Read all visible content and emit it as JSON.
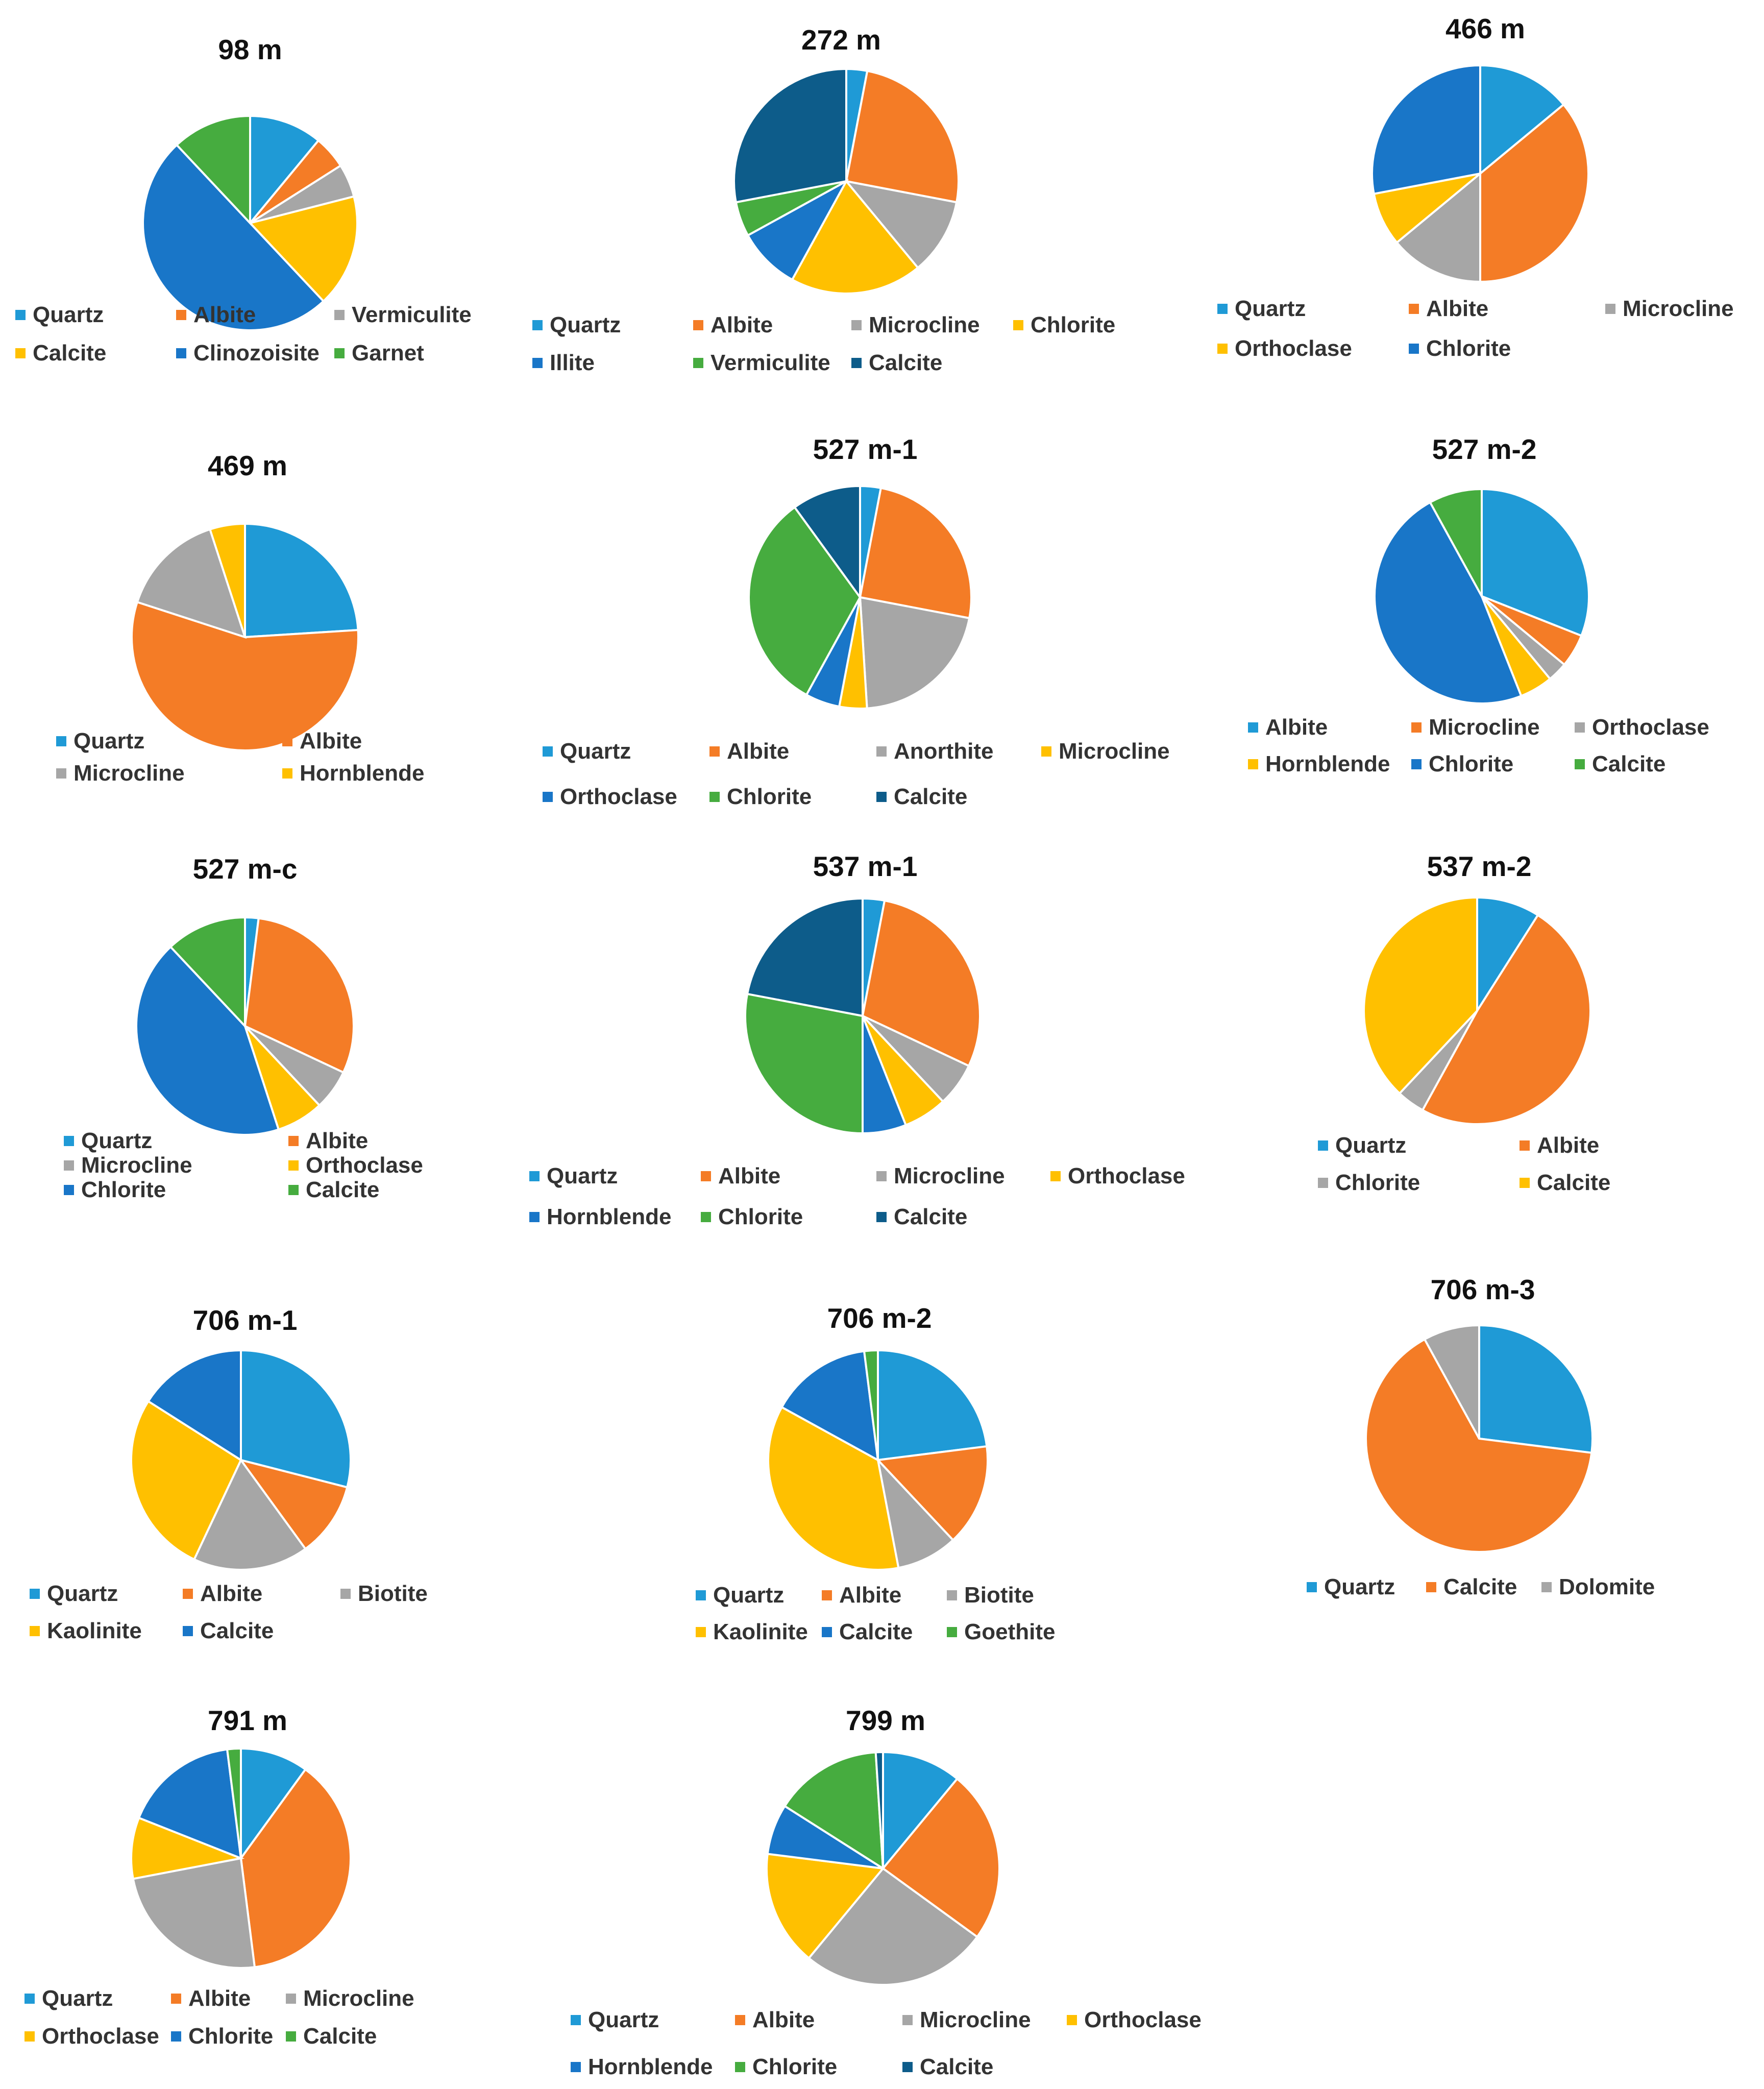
{
  "colors": {
    "Quartz": "#1f9ad6",
    "Albite": "#f47c26",
    "Vermiculite": "#a6a6a6",
    "Calcite": "#ffc000",
    "Clinozoisite": "#1976c8",
    "Garnet": "#46ac3f",
    "Microcline": "#a6a6a6",
    "Chlorite": "#ffc000",
    "Illite": "#1976c8",
    "Anorthite": "#a6a6a6",
    "Orthoclase": "#ffc000",
    "Hornblende": "#ffc000",
    "Biotite": "#a6a6a6",
    "Kaolinite": "#ffc000",
    "Goethite": "#46ac3f",
    "Dolomite": "#a6a6a6"
  },
  "chart_data": [
    {
      "type": "pie",
      "title": "98 m",
      "series": [
        {
          "name": "Quartz",
          "value": 11,
          "color": "#1f9ad6"
        },
        {
          "name": "Albite",
          "value": 5,
          "color": "#f47c26"
        },
        {
          "name": "Vermiculite",
          "value": 5,
          "color": "#a6a6a6"
        },
        {
          "name": "Calcite",
          "value": 17,
          "color": "#ffc000"
        },
        {
          "name": "Clinozoisite",
          "value": 50,
          "color": "#1976c8"
        },
        {
          "name": "Garnet",
          "value": 12,
          "color": "#46ac3f"
        }
      ],
      "legend": "bottom"
    },
    {
      "type": "pie",
      "title": "272 m",
      "series": [
        {
          "name": "Quartz",
          "value": 3,
          "color": "#1f9ad6"
        },
        {
          "name": "Albite",
          "value": 25,
          "color": "#f47c26"
        },
        {
          "name": "Microcline",
          "value": 11,
          "color": "#a6a6a6"
        },
        {
          "name": "Chlorite",
          "value": 19,
          "color": "#ffc000"
        },
        {
          "name": "Illite",
          "value": 9,
          "color": "#1976c8"
        },
        {
          "name": "Vermiculite",
          "value": 5,
          "color": "#46ac3f"
        },
        {
          "name": "Calcite",
          "value": 28,
          "color": "#0d5c8a"
        }
      ],
      "legend": "bottom"
    },
    {
      "type": "pie",
      "title": "466 m",
      "series": [
        {
          "name": "Quartz",
          "value": 14,
          "color": "#1f9ad6"
        },
        {
          "name": "Albite",
          "value": 36,
          "color": "#f47c26"
        },
        {
          "name": "Microcline",
          "value": 14,
          "color": "#a6a6a6"
        },
        {
          "name": "Orthoclase",
          "value": 8,
          "color": "#ffc000"
        },
        {
          "name": "Chlorite",
          "value": 28,
          "color": "#1976c8"
        }
      ],
      "legend": "bottom"
    },
    {
      "type": "pie",
      "title": "469 m",
      "series": [
        {
          "name": "Quartz",
          "value": 24,
          "color": "#1f9ad6"
        },
        {
          "name": "Albite",
          "value": 56,
          "color": "#f47c26"
        },
        {
          "name": "Microcline",
          "value": 15,
          "color": "#a6a6a6"
        },
        {
          "name": "Hornblende",
          "value": 5,
          "color": "#ffc000"
        }
      ],
      "legend": "bottom"
    },
    {
      "type": "pie",
      "title": "527 m-1",
      "series": [
        {
          "name": "Quartz",
          "value": 3,
          "color": "#1f9ad6"
        },
        {
          "name": "Albite",
          "value": 25,
          "color": "#f47c26"
        },
        {
          "name": "Anorthite",
          "value": 21,
          "color": "#a6a6a6"
        },
        {
          "name": "Microcline",
          "value": 4,
          "color": "#ffc000"
        },
        {
          "name": "Orthoclase",
          "value": 5,
          "color": "#1976c8"
        },
        {
          "name": "Chlorite",
          "value": 32,
          "color": "#46ac3f"
        },
        {
          "name": "Calcite",
          "value": 10,
          "color": "#0d5c8a"
        }
      ],
      "legend": "bottom"
    },
    {
      "type": "pie",
      "title": "527 m-2",
      "series": [
        {
          "name": "Albite",
          "value": 31,
          "color": "#1f9ad6"
        },
        {
          "name": "Microcline",
          "value": 5,
          "color": "#f47c26"
        },
        {
          "name": "Orthoclase",
          "value": 3,
          "color": "#a6a6a6"
        },
        {
          "name": "Hornblende",
          "value": 5,
          "color": "#ffc000"
        },
        {
          "name": "Chlorite",
          "value": 48,
          "color": "#1976c8"
        },
        {
          "name": "Calcite",
          "value": 8,
          "color": "#46ac3f"
        }
      ],
      "legend": "bottom"
    },
    {
      "type": "pie",
      "title": "527 m-c",
      "series": [
        {
          "name": "Quartz",
          "value": 2,
          "color": "#1f9ad6"
        },
        {
          "name": "Albite",
          "value": 30,
          "color": "#f47c26"
        },
        {
          "name": "Microcline",
          "value": 6,
          "color": "#a6a6a6"
        },
        {
          "name": "Orthoclase",
          "value": 7,
          "color": "#ffc000"
        },
        {
          "name": "Chlorite",
          "value": 43,
          "color": "#1976c8"
        },
        {
          "name": "Calcite",
          "value": 12,
          "color": "#46ac3f"
        }
      ],
      "legend": "bottom"
    },
    {
      "type": "pie",
      "title": "537 m-1",
      "series": [
        {
          "name": "Quartz",
          "value": 3,
          "color": "#1f9ad6"
        },
        {
          "name": "Albite",
          "value": 29,
          "color": "#f47c26"
        },
        {
          "name": "Microcline",
          "value": 6,
          "color": "#a6a6a6"
        },
        {
          "name": "Orthoclase",
          "value": 6,
          "color": "#ffc000"
        },
        {
          "name": "Hornblende",
          "value": 6,
          "color": "#1976c8"
        },
        {
          "name": "Chlorite",
          "value": 28,
          "color": "#46ac3f"
        },
        {
          "name": "Calcite",
          "value": 22,
          "color": "#0d5c8a"
        }
      ],
      "legend": "bottom"
    },
    {
      "type": "pie",
      "title": "537 m-2",
      "series": [
        {
          "name": "Quartz",
          "value": 9,
          "color": "#1f9ad6"
        },
        {
          "name": "Albite",
          "value": 49,
          "color": "#f47c26"
        },
        {
          "name": "Chlorite",
          "value": 4,
          "color": "#a6a6a6"
        },
        {
          "name": "Calcite",
          "value": 38,
          "color": "#ffc000"
        }
      ],
      "legend": "bottom"
    },
    {
      "type": "pie",
      "title": "706 m-1",
      "series": [
        {
          "name": "Quartz",
          "value": 29,
          "color": "#1f9ad6"
        },
        {
          "name": "Albite",
          "value": 11,
          "color": "#f47c26"
        },
        {
          "name": "Biotite",
          "value": 17,
          "color": "#a6a6a6"
        },
        {
          "name": "Kaolinite",
          "value": 27,
          "color": "#ffc000"
        },
        {
          "name": "Calcite",
          "value": 16,
          "color": "#1976c8"
        }
      ],
      "legend": "bottom"
    },
    {
      "type": "pie",
      "title": "706 m-2",
      "series": [
        {
          "name": "Quartz",
          "value": 23,
          "color": "#1f9ad6"
        },
        {
          "name": "Albite",
          "value": 15,
          "color": "#f47c26"
        },
        {
          "name": "Biotite",
          "value": 9,
          "color": "#a6a6a6"
        },
        {
          "name": "Kaolinite",
          "value": 36,
          "color": "#ffc000"
        },
        {
          "name": "Calcite",
          "value": 15,
          "color": "#1976c8"
        },
        {
          "name": "Goethite",
          "value": 2,
          "color": "#46ac3f"
        }
      ],
      "legend": "bottom"
    },
    {
      "type": "pie",
      "title": "706 m-3",
      "series": [
        {
          "name": "Quartz",
          "value": 27,
          "color": "#1f9ad6"
        },
        {
          "name": "Calcite",
          "value": 65,
          "color": "#f47c26"
        },
        {
          "name": "Dolomite",
          "value": 8,
          "color": "#a6a6a6"
        }
      ],
      "legend": "bottom"
    },
    {
      "type": "pie",
      "title": "791 m",
      "series": [
        {
          "name": "Quartz",
          "value": 10,
          "color": "#1f9ad6"
        },
        {
          "name": "Albite",
          "value": 38,
          "color": "#f47c26"
        },
        {
          "name": "Microcline",
          "value": 24,
          "color": "#a6a6a6"
        },
        {
          "name": "Orthoclase",
          "value": 9,
          "color": "#ffc000"
        },
        {
          "name": "Chlorite",
          "value": 17,
          "color": "#1976c8"
        },
        {
          "name": "Calcite",
          "value": 2,
          "color": "#46ac3f"
        }
      ],
      "legend": "bottom"
    },
    {
      "type": "pie",
      "title": "799 m",
      "series": [
        {
          "name": "Quartz",
          "value": 11,
          "color": "#1f9ad6"
        },
        {
          "name": "Albite",
          "value": 24,
          "color": "#f47c26"
        },
        {
          "name": "Microcline",
          "value": 26,
          "color": "#a6a6a6"
        },
        {
          "name": "Orthoclase",
          "value": 16,
          "color": "#ffc000"
        },
        {
          "name": "Hornblende",
          "value": 7,
          "color": "#1976c8"
        },
        {
          "name": "Chlorite",
          "value": 15,
          "color": "#46ac3f"
        },
        {
          "name": "Calcite",
          "value": 1,
          "color": "#0d5c8a"
        }
      ],
      "legend": "bottom"
    }
  ]
}
